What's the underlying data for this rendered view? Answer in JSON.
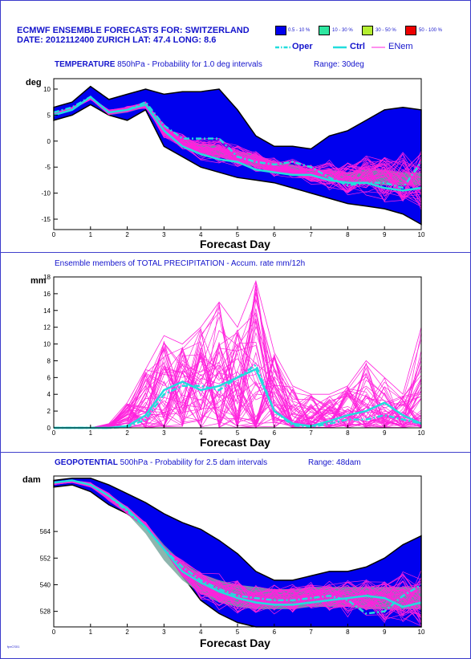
{
  "header": {
    "title": "ECMWF ENSEMBLE FORECASTS FOR:  SWITZERLAND",
    "subtitle": "DATE: 2012112400  ZURICH  LAT: 47.4  LONG: 8.6"
  },
  "legend": {
    "boxes": [
      {
        "label": "0.5 - 10 %",
        "color": "#0000ee"
      },
      {
        "label": "10 - 30 %",
        "color": "#2ee6a0"
      },
      {
        "label": "30 - 50 %",
        "color": "#b4ee30"
      },
      {
        "label": "50 - 100 %",
        "color": "#ee0000"
      }
    ],
    "lines": {
      "oper": "Oper",
      "ctrl": "Ctrl",
      "enem": "ENem"
    }
  },
  "colors": {
    "fill": "#0000ee",
    "member": "#ff22dd",
    "ctrl": "#22dddd",
    "oper": "#22dddd",
    "frame": "#3a3acc"
  },
  "footer": {
    "tiny": "fpxCS01"
  },
  "chart_data": [
    {
      "type": "area",
      "title_bold": "TEMPERATURE",
      "title_rest": " 850hPa - Probability for 1.0 deg intervals",
      "range": "Range: 30deg",
      "ylabel": "deg",
      "xlabel": "Forecast Day",
      "xlim": [
        0,
        10
      ],
      "ylim": [
        -17,
        12
      ],
      "yticks": [
        10,
        5,
        0,
        -5,
        -10,
        -15
      ],
      "xticks": [
        0,
        1,
        2,
        3,
        4,
        5,
        6,
        7,
        8,
        9,
        10
      ],
      "x": [
        0,
        0.5,
        1,
        1.5,
        2,
        2.5,
        3,
        3.5,
        4,
        4.5,
        5,
        5.5,
        6,
        6.5,
        7,
        7.5,
        8,
        8.5,
        9,
        9.5,
        10
      ],
      "env_upper": [
        6.5,
        7.5,
        10.5,
        8,
        9,
        10,
        9,
        9.5,
        9.5,
        10,
        6,
        1,
        -1,
        -1,
        -1.5,
        1,
        2,
        4,
        6,
        6.5,
        6
      ],
      "env_lower": [
        4,
        5,
        7,
        5,
        4,
        6,
        -1,
        -3,
        -5,
        -6,
        -7,
        -7.5,
        -8,
        -9,
        -10,
        -11,
        -12,
        -12.5,
        -13,
        -14,
        -16
      ],
      "core_upper": [
        5.5,
        6.5,
        8.5,
        6,
        6.5,
        7.5,
        3,
        0.5,
        -0.5,
        -1,
        -2,
        -2.5,
        -4,
        -4.5,
        -5.5,
        -5.5,
        -6,
        -5.5,
        -5.5,
        -6,
        -6
      ],
      "core_lower": [
        5,
        6,
        8,
        5,
        5.5,
        6.5,
        1,
        -1,
        -2.5,
        -3,
        -4,
        -5,
        -6,
        -6.5,
        -7,
        -7.5,
        -8,
        -8,
        -8.5,
        -8.5,
        -8.5
      ],
      "oper": [
        5.5,
        6.5,
        8.5,
        5.5,
        6,
        7.5,
        3,
        0.5,
        0.5,
        0.5,
        -3,
        -4,
        -4.5,
        -4,
        -5,
        -7,
        -8.5,
        -8,
        -8,
        -9,
        -4
      ],
      "ctrl": [
        5,
        6,
        8.5,
        5.5,
        6,
        7,
        2,
        -1,
        -2.5,
        -3.5,
        -4,
        -5.5,
        -6,
        -6.5,
        -6.5,
        -7.5,
        -8,
        -8,
        -9,
        -9.5,
        -9
      ],
      "members_count": 50
    },
    {
      "type": "line",
      "title": "Ensemble members of TOTAL PRECIPITATION - Accum. rate mm/12h",
      "ylabel": "mm",
      "xlabel": "Forecast Day",
      "xlim": [
        0,
        10
      ],
      "ylim": [
        0,
        18
      ],
      "yticks": [
        0,
        2,
        4,
        6,
        8,
        10,
        12,
        14,
        16,
        18
      ],
      "xticks": [
        0,
        1,
        2,
        3,
        4,
        5,
        6,
        7,
        8,
        9,
        10
      ],
      "x": [
        0,
        0.5,
        1,
        1.5,
        2,
        2.5,
        3,
        3.5,
        4,
        4.5,
        5,
        5.5,
        6,
        6.5,
        7,
        7.5,
        8,
        8.5,
        9,
        9.5,
        10
      ],
      "oper": [
        0,
        0,
        0,
        0,
        0.1,
        1,
        4,
        5,
        5,
        4.5,
        6,
        7.5,
        2,
        0.3,
        0.1,
        0.5,
        1,
        1,
        1.5,
        1,
        0.5
      ],
      "ctrl": [
        0,
        0,
        0,
        0,
        0.2,
        1.5,
        4.5,
        5.5,
        4.5,
        5,
        6,
        7,
        2,
        0.5,
        0.2,
        0.8,
        1.5,
        2,
        3,
        1.5,
        0.5
      ],
      "member_max": [
        0,
        0,
        0,
        0.5,
        3,
        7,
        11,
        10,
        12,
        15,
        12,
        17.5,
        9,
        5,
        4,
        4,
        5,
        8,
        6,
        4,
        12
      ],
      "members_count": 50
    },
    {
      "type": "area",
      "title_bold": "GEOPOTENTIAL",
      "title_rest": " 500hPa - Probability for 2.5 dam intervals",
      "range": "Range: 48dam",
      "ylabel": "dam",
      "xlabel": "Forecast Day",
      "xlim": [
        0,
        10
      ],
      "ylim": [
        521,
        589
      ],
      "yticks": [
        564,
        552,
        540,
        528
      ],
      "xticks": [
        0,
        1,
        2,
        3,
        4,
        5,
        6,
        7,
        8,
        9,
        10
      ],
      "x": [
        0,
        0.5,
        1,
        1.5,
        2,
        2.5,
        3,
        3.5,
        4,
        4.5,
        5,
        5.5,
        6,
        6.5,
        7,
        7.5,
        8,
        8.5,
        9,
        9.5,
        10
      ],
      "env_upper": [
        587,
        588,
        588,
        585,
        581,
        577,
        572,
        568,
        565,
        560,
        554,
        546,
        542,
        542,
        544,
        546,
        546,
        548,
        552,
        558,
        562
      ],
      "env_lower": [
        584,
        585,
        582,
        576,
        572,
        566,
        556,
        544,
        533,
        527,
        523,
        521,
        521,
        521,
        521,
        521,
        521,
        521,
        521,
        521,
        521
      ],
      "core_upper": [
        586,
        587,
        586,
        581,
        575,
        568,
        558,
        550,
        545,
        542,
        540,
        539,
        538,
        538,
        539,
        539,
        539,
        539,
        539,
        539,
        539
      ],
      "core_lower": [
        585,
        586,
        584,
        578,
        572,
        563,
        551,
        542,
        536,
        532,
        530,
        529,
        529,
        529,
        530,
        530,
        530,
        529,
        529,
        529,
        529
      ],
      "oper": [
        586,
        587,
        585,
        580,
        573,
        566,
        556,
        548,
        542,
        538,
        535,
        534,
        533,
        533,
        534,
        535,
        533,
        527,
        528,
        535,
        540
      ],
      "ctrl": [
        586,
        587,
        585,
        580,
        574,
        566,
        556,
        546,
        541,
        537,
        534,
        532,
        531,
        531,
        532,
        533,
        534,
        535,
        534,
        530,
        532
      ],
      "members_count": 50
    }
  ]
}
